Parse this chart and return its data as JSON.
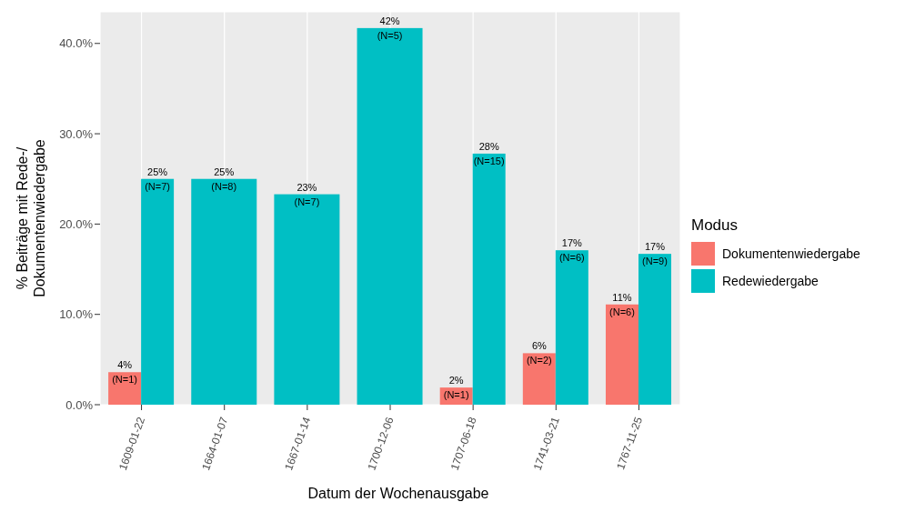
{
  "chart_data": {
    "type": "bar",
    "xlabel": "Datum der Wochenausgabe",
    "ylabel": "% Beiträge mit Rede-/\nDokumentenwiedergabe",
    "legend_title": "Modus",
    "categories": [
      "1609-01-22",
      "1664-01-07",
      "1667-01-14",
      "1700-12-06",
      "1707-06-18",
      "1741-03-21",
      "1767-11-25"
    ],
    "series": [
      {
        "name": "Dokumentenwiedergabe",
        "color": "#f8766d",
        "values": [
          3.6,
          null,
          null,
          null,
          1.9,
          5.7,
          11.1
        ],
        "value_labels": [
          "4%\n(N=1)",
          null,
          null,
          null,
          "2%\n(N=1)",
          "6%\n(N=2)",
          "11%\n(N=6)"
        ]
      },
      {
        "name": "Redewiedergabe",
        "color": "#00bfc4",
        "values": [
          25,
          25,
          23.3,
          41.7,
          27.8,
          17.1,
          16.7
        ],
        "value_labels": [
          "25%\n(N=7)",
          "25%\n(N=8)",
          "23%\n(N=7)",
          "42%\n(N=5)",
          "28%\n(N=15)",
          "17%\n(N=6)",
          "17%\n(N=9)"
        ]
      }
    ],
    "ylim": [
      0,
      43.5
    ],
    "yticks": [
      {
        "value": 0,
        "label": "0.0%"
      },
      {
        "value": 10,
        "label": "10.0%"
      },
      {
        "value": 20,
        "label": "20.0%"
      },
      {
        "value": 30,
        "label": "30.0%"
      },
      {
        "value": 40,
        "label": "40.0%"
      }
    ],
    "grid": true,
    "legend": "right"
  }
}
